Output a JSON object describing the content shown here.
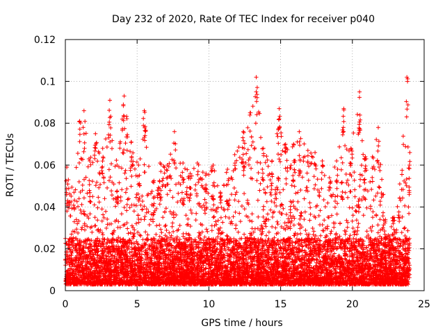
{
  "chart_data": {
    "type": "scatter",
    "title": "Day 232 of 2020, Rate Of TEC Index for receiver p040",
    "xlabel": "GPS time / hours",
    "ylabel": "ROTI / TECUs",
    "xlim": [
      0,
      25
    ],
    "ylim": [
      0,
      0.12
    ],
    "x_ticks": [
      0,
      5,
      10,
      15,
      20,
      25
    ],
    "y_ticks": [
      0,
      0.02,
      0.04,
      0.06,
      0.08,
      0.1,
      0.12
    ],
    "x_tick_labels": [
      "0",
      "5",
      "10",
      "15",
      "20",
      "25"
    ],
    "y_tick_labels": [
      "0",
      "0.02",
      "0.04",
      "0.06",
      "0.08",
      "0.1",
      "0.12"
    ],
    "grid": true,
    "marker": "+",
    "color": "#ff0000",
    "x_data_range": [
      0,
      24
    ],
    "envelope": {
      "note": "approximate upper envelope of the dense point cloud (hour, ROTI)",
      "points": [
        [
          0.1,
          0.059
        ],
        [
          0.6,
          0.047
        ],
        [
          1.0,
          0.081
        ],
        [
          1.3,
          0.086
        ],
        [
          1.7,
          0.062
        ],
        [
          2.1,
          0.075
        ],
        [
          2.6,
          0.068
        ],
        [
          3.1,
          0.091
        ],
        [
          3.6,
          0.06
        ],
        [
          4.1,
          0.093
        ],
        [
          4.6,
          0.071
        ],
        [
          5.1,
          0.06
        ],
        [
          5.5,
          0.086
        ],
        [
          6.1,
          0.052
        ],
        [
          6.6,
          0.061
        ],
        [
          7.1,
          0.06
        ],
        [
          7.6,
          0.076
        ],
        [
          8.2,
          0.061
        ],
        [
          8.7,
          0.056
        ],
        [
          9.2,
          0.061
        ],
        [
          9.8,
          0.056
        ],
        [
          10.3,
          0.06
        ],
        [
          10.8,
          0.047
        ],
        [
          11.3,
          0.058
        ],
        [
          11.8,
          0.065
        ],
        [
          12.4,
          0.076
        ],
        [
          12.9,
          0.085
        ],
        [
          13.3,
          0.102
        ],
        [
          13.8,
          0.068
        ],
        [
          14.4,
          0.062
        ],
        [
          14.9,
          0.087
        ],
        [
          15.4,
          0.068
        ],
        [
          15.9,
          0.07
        ],
        [
          16.3,
          0.076
        ],
        [
          16.9,
          0.067
        ],
        [
          17.4,
          0.066
        ],
        [
          17.9,
          0.062
        ],
        [
          18.4,
          0.054
        ],
        [
          18.9,
          0.062
        ],
        [
          19.4,
          0.087
        ],
        [
          19.9,
          0.068
        ],
        [
          20.5,
          0.095
        ],
        [
          20.9,
          0.064
        ],
        [
          21.4,
          0.064
        ],
        [
          21.8,
          0.078
        ],
        [
          22.3,
          0.034
        ],
        [
          22.9,
          0.035
        ],
        [
          23.3,
          0.051
        ],
        [
          23.8,
          0.102
        ],
        [
          24.0,
          0.066
        ]
      ]
    },
    "baseline_band": [
      0.003,
      0.025
    ]
  }
}
